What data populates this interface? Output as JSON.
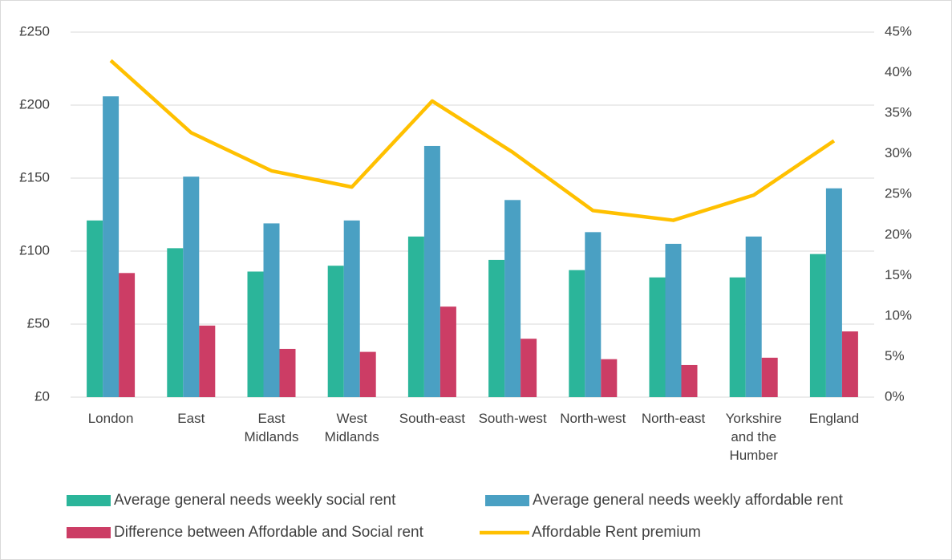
{
  "chart_data": {
    "type": "bar",
    "categories": [
      "London",
      "East",
      "East Midlands",
      "West Midlands",
      "South-east",
      "South-west",
      "North-west",
      "North-east",
      "Yorkshire and the Humber",
      "England"
    ],
    "series": [
      {
        "name": "Average general needs weekly social rent",
        "color": "#2bb59a",
        "values": [
          121,
          102,
          86,
          90,
          110,
          94,
          87,
          82,
          82,
          98
        ]
      },
      {
        "name": "Average general needs weekly affordable rent",
        "color": "#4aa0c3",
        "values": [
          206,
          151,
          119,
          121,
          172,
          135,
          113,
          105,
          110,
          143
        ]
      },
      {
        "name": "Difference between Affordable and Social rent",
        "color": "#cc3d65",
        "values": [
          85,
          49,
          33,
          31,
          62,
          40,
          26,
          22,
          27,
          45
        ]
      },
      {
        "name": "Affordable Rent premium",
        "color": "#ffc000",
        "type": "line",
        "axis": "y2",
        "values": [
          41.5,
          32.6,
          27.9,
          25.9,
          36.5,
          30.2,
          23.0,
          21.8,
          24.9,
          31.6
        ]
      }
    ],
    "ylim": [
      0,
      250
    ],
    "yticks": [
      {
        "value": 0,
        "label": "£0"
      },
      {
        "value": 50,
        "label": "£50"
      },
      {
        "value": 100,
        "label": "£100"
      },
      {
        "value": 150,
        "label": "£150"
      },
      {
        "value": 200,
        "label": "£200"
      },
      {
        "value": 250,
        "label": "£250"
      }
    ],
    "y2lim": [
      0,
      45
    ],
    "y2ticks": [
      {
        "value": 0,
        "label": "0%"
      },
      {
        "value": 5,
        "label": "5%"
      },
      {
        "value": 10,
        "label": "10%"
      },
      {
        "value": 15,
        "label": "15%"
      },
      {
        "value": 20,
        "label": "20%"
      },
      {
        "value": 25,
        "label": "25%"
      },
      {
        "value": 30,
        "label": "30%"
      },
      {
        "value": 35,
        "label": "35%"
      },
      {
        "value": 40,
        "label": "40%"
      },
      {
        "value": 45,
        "label": "45%"
      }
    ],
    "grid": true,
    "legend": "bottom"
  }
}
